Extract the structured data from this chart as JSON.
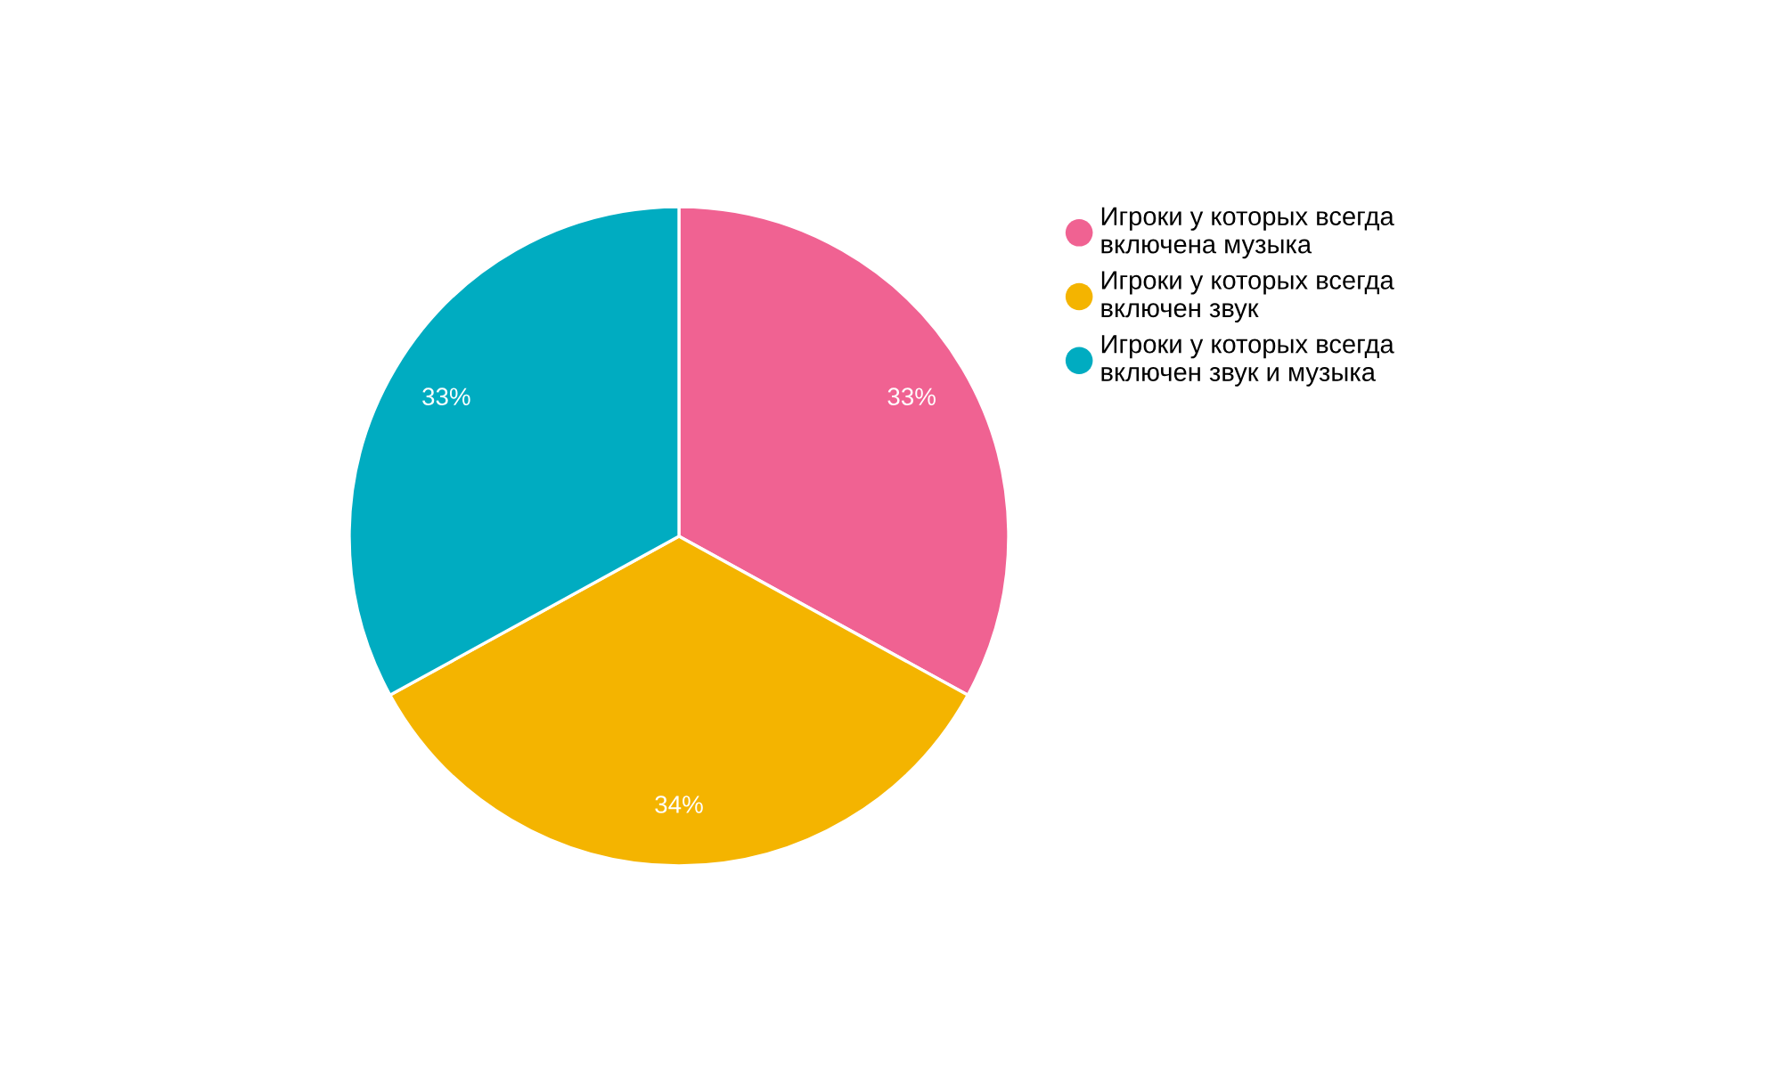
{
  "chart_data": {
    "type": "pie",
    "categories": [
      "Игроки у которых всегда\nвключена музыка",
      "Игроки у которых всегда\nвключен звук",
      "Игроки у которых всегда\nвключен звук и музыка"
    ],
    "values": [
      33,
      34,
      33
    ],
    "colors": [
      "#f06292",
      "#f4b400",
      "#00acc1"
    ],
    "value_labels": [
      "33%",
      "34%",
      "33%"
    ],
    "legend": "right",
    "marker": "circle"
  }
}
